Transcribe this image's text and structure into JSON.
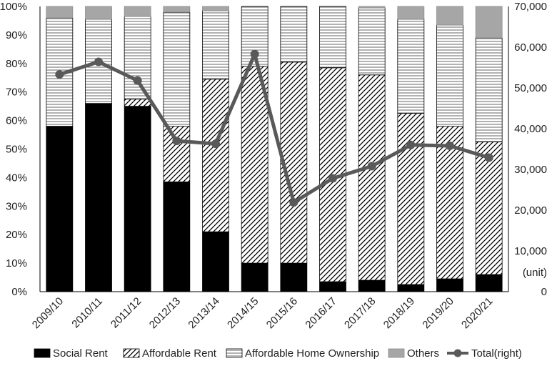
{
  "chart_data": {
    "type": "bar",
    "stacked": true,
    "categories": [
      "2009/10",
      "2010/11",
      "2011/12",
      "2012/13",
      "2013/14",
      "2014/15",
      "2015/16",
      "2016/17",
      "2017/18",
      "2018/19",
      "2019/20",
      "2020/21"
    ],
    "series": [
      {
        "name": "Social Rent",
        "values": [
          58,
          66,
          65,
          38.5,
          21,
          10,
          10,
          3.5,
          4,
          2.5,
          4.5,
          6
        ],
        "color": "#000000",
        "pattern": "solid"
      },
      {
        "name": "Affordable Rent",
        "values": [
          0,
          0,
          2.5,
          19.5,
          53.5,
          69,
          70.5,
          75,
          72,
          60,
          53.5,
          46.5
        ],
        "color": "#000000",
        "pattern": "diagonal"
      },
      {
        "name": "Affordable Home Ownership",
        "values": [
          38,
          29.5,
          29,
          40,
          24,
          21,
          19.5,
          21.5,
          23.5,
          33,
          35.5,
          36.5
        ],
        "color": "#000000",
        "pattern": "horizontal"
      },
      {
        "name": "Others",
        "values": [
          4,
          4.5,
          3.5,
          2,
          1.5,
          0,
          0,
          0,
          0.5,
          4.5,
          6.5,
          11
        ],
        "color": "#a6a6a6",
        "pattern": "solid"
      }
    ],
    "line_series": {
      "name": "Total(right)",
      "axis": "right",
      "values": [
        53300,
        56400,
        51800,
        37000,
        36300,
        58300,
        21900,
        27800,
        30800,
        36000,
        35800,
        32900
      ],
      "color": "#595959"
    },
    "y_left": {
      "range": [
        0,
        100
      ],
      "step": 10,
      "tick_labels": [
        "0%",
        "10%",
        "20%",
        "30%",
        "40%",
        "50%",
        "60%",
        "70%",
        "80%",
        "90%",
        "100%"
      ]
    },
    "y_right": {
      "range": [
        0,
        70000
      ],
      "step": 10000,
      "tick_labels": [
        "0",
        "10,000",
        "20,000",
        "30,000",
        "40,000",
        "50,000",
        "60,000",
        "70,000"
      ],
      "unit_label": "(unit)"
    },
    "legend": {
      "placement": "bottom"
    },
    "grid": false
  }
}
